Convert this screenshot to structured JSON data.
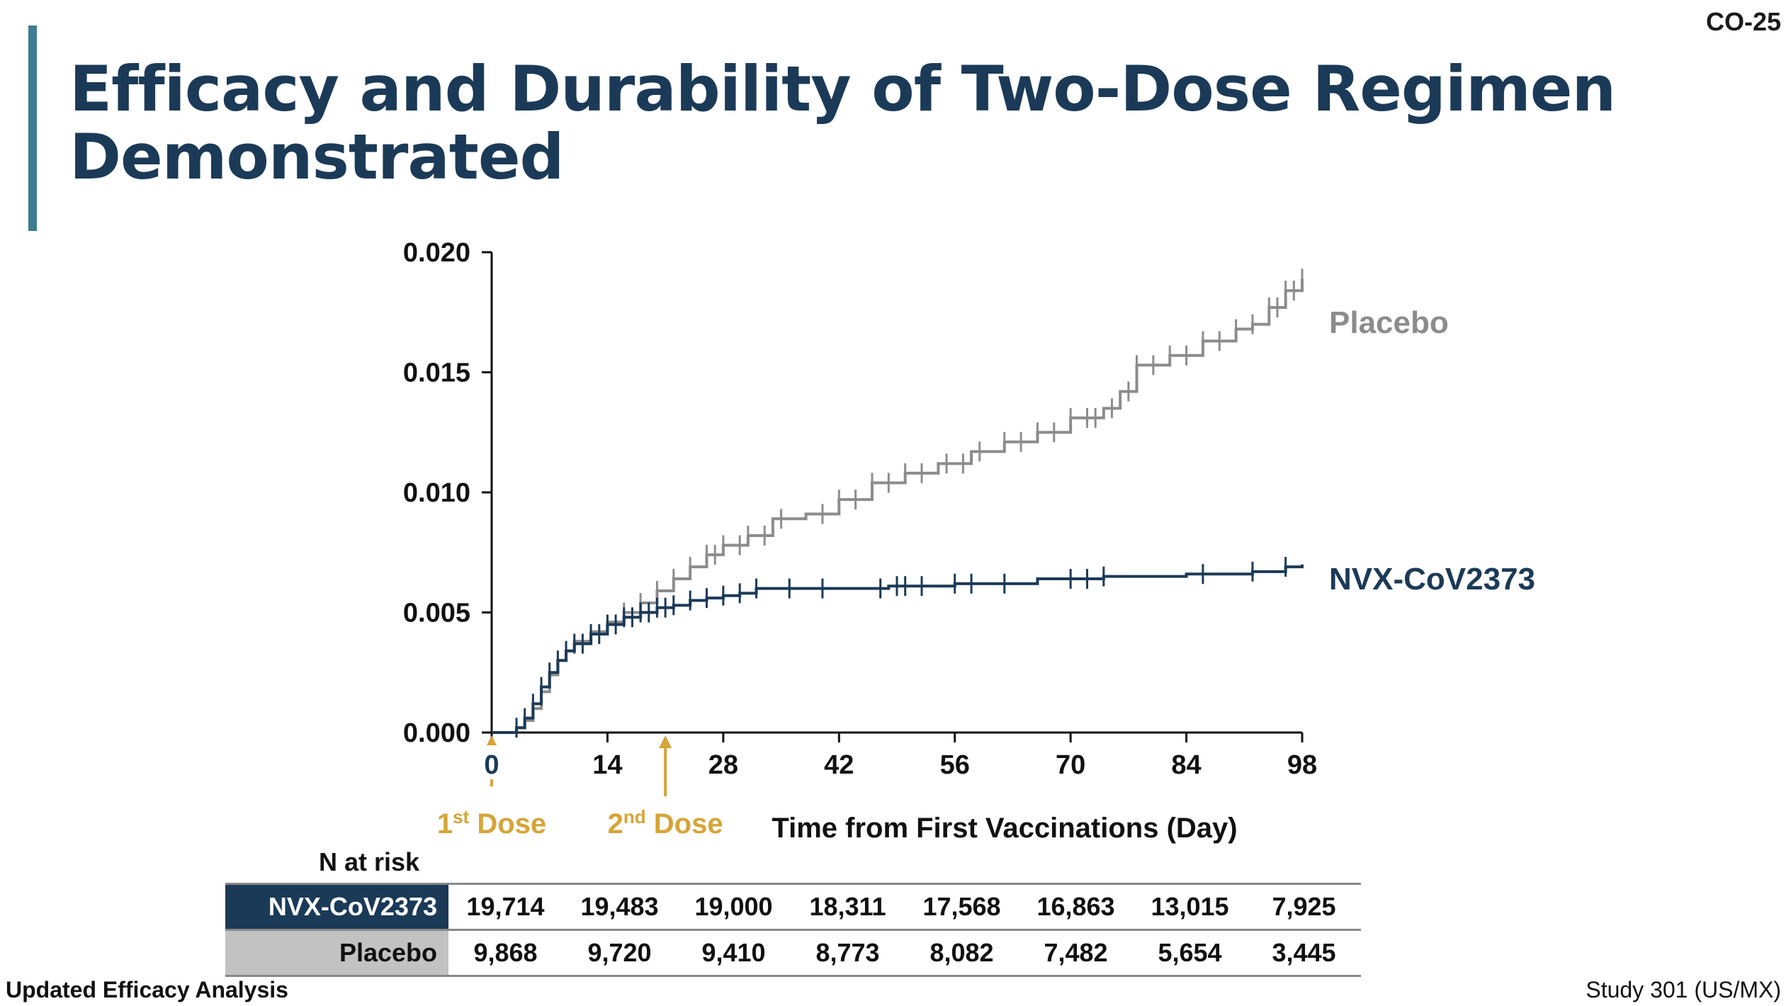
{
  "slide_id": "CO-25",
  "title_line1": "Efficacy and Durability of Two-Dose Regimen",
  "title_line2": "Demonstrated",
  "colors": {
    "title": "#1b3a57",
    "accent_bar": "#3e7c91",
    "nvx": "#1b3a57",
    "placebo": "#8c8c8c",
    "dose": "#d6a437"
  },
  "chart_data": {
    "type": "line",
    "xlabel": "Time from First Vaccinations (Day)",
    "ylabel": "",
    "xlim": [
      0,
      98
    ],
    "ylim": [
      0,
      0.02
    ],
    "x_ticks": [
      0,
      14,
      28,
      42,
      56,
      70,
      84,
      98
    ],
    "y_ticks": [
      0.0,
      0.005,
      0.01,
      0.015,
      0.02
    ],
    "y_tick_labels": [
      "0.000",
      "0.005",
      "0.010",
      "0.015",
      "0.020"
    ],
    "x_tick_labels": [
      "0",
      "14",
      "28",
      "42",
      "56",
      "70",
      "84",
      "98"
    ],
    "series": [
      {
        "name": "Placebo",
        "color": "#8c8c8c",
        "points": [
          [
            0,
            0
          ],
          [
            2,
            0
          ],
          [
            3,
            0.0002
          ],
          [
            4,
            0.0005
          ],
          [
            5,
            0.001
          ],
          [
            6,
            0.0017
          ],
          [
            7,
            0.0024
          ],
          [
            8,
            0.003
          ],
          [
            9,
            0.0034
          ],
          [
            10,
            0.0038
          ],
          [
            12,
            0.0042
          ],
          [
            14,
            0.0046
          ],
          [
            16,
            0.005
          ],
          [
            18,
            0.0054
          ],
          [
            20,
            0.0059
          ],
          [
            22,
            0.0064
          ],
          [
            24,
            0.0069
          ],
          [
            26,
            0.0074
          ],
          [
            28,
            0.0078
          ],
          [
            31,
            0.0082
          ],
          [
            34,
            0.0089
          ],
          [
            38,
            0.0091
          ],
          [
            42,
            0.0097
          ],
          [
            46,
            0.0104
          ],
          [
            50,
            0.0108
          ],
          [
            54,
            0.0112
          ],
          [
            58,
            0.0117
          ],
          [
            62,
            0.0121
          ],
          [
            66,
            0.0125
          ],
          [
            70,
            0.0131
          ],
          [
            74,
            0.0135
          ],
          [
            76,
            0.0142
          ],
          [
            78,
            0.0153
          ],
          [
            82,
            0.0157
          ],
          [
            86,
            0.0163
          ],
          [
            90,
            0.0168
          ],
          [
            92,
            0.017
          ],
          [
            94,
            0.0177
          ],
          [
            96,
            0.0184
          ],
          [
            98,
            0.0189
          ]
        ],
        "censor_x": [
          16,
          18,
          20,
          22,
          24,
          26,
          27,
          28,
          30,
          31,
          33,
          35,
          40,
          42,
          44,
          46,
          48,
          50,
          52,
          55,
          57,
          59,
          62,
          64,
          66,
          68,
          70,
          72,
          73,
          75,
          77,
          78,
          80,
          82,
          84,
          86,
          88,
          90,
          92,
          94,
          95,
          96,
          97,
          98
        ]
      },
      {
        "name": "NVX-CoV2373",
        "color": "#1b3a57",
        "points": [
          [
            0,
            0
          ],
          [
            2,
            0
          ],
          [
            3,
            0.0002
          ],
          [
            4,
            0.0006
          ],
          [
            5,
            0.0012
          ],
          [
            6,
            0.0019
          ],
          [
            7,
            0.0025
          ],
          [
            8,
            0.003
          ],
          [
            9,
            0.0034
          ],
          [
            10,
            0.0037
          ],
          [
            12,
            0.0041
          ],
          [
            14,
            0.0045
          ],
          [
            16,
            0.0048
          ],
          [
            18,
            0.005
          ],
          [
            20,
            0.0052
          ],
          [
            22,
            0.0053
          ],
          [
            24,
            0.0055
          ],
          [
            26,
            0.0056
          ],
          [
            28,
            0.0057
          ],
          [
            30,
            0.0058
          ],
          [
            32,
            0.006
          ],
          [
            40,
            0.006
          ],
          [
            48,
            0.0061
          ],
          [
            56,
            0.0062
          ],
          [
            66,
            0.0064
          ],
          [
            74,
            0.0065
          ],
          [
            84,
            0.0066
          ],
          [
            92,
            0.0067
          ],
          [
            96,
            0.0069
          ],
          [
            98,
            0.007
          ]
        ],
        "censor_x": [
          3,
          4,
          5,
          6,
          7,
          8,
          9,
          10,
          11,
          12,
          13,
          14,
          15,
          16,
          17,
          18,
          19,
          20,
          21,
          22,
          24,
          26,
          28,
          30,
          32,
          36,
          40,
          47,
          49,
          50,
          52,
          56,
          58,
          62,
          70,
          72,
          74,
          86,
          92,
          96
        ]
      }
    ],
    "series_labels": [
      "Placebo",
      "NVX-CoV2373"
    ],
    "annotations": [
      {
        "label": "1",
        "sup": "st",
        "suffix": " Dose",
        "x": 0
      },
      {
        "label": "2",
        "sup": "nd",
        "suffix": " Dose",
        "x": 21
      }
    ]
  },
  "risk_table": {
    "caption": "N at risk",
    "rows": [
      {
        "label": "NVX-CoV2373",
        "values": [
          "19,714",
          "19,483",
          "19,000",
          "18,311",
          "17,568",
          "16,863",
          "13,015",
          "7,925"
        ]
      },
      {
        "label": "Placebo",
        "values": [
          "9,868",
          "9,720",
          "9,410",
          "8,773",
          "8,082",
          "7,482",
          "5,654",
          "3,445"
        ]
      }
    ]
  },
  "footer_left": "Updated Efficacy Analysis",
  "footer_right": "Study 301 (US/MX)"
}
